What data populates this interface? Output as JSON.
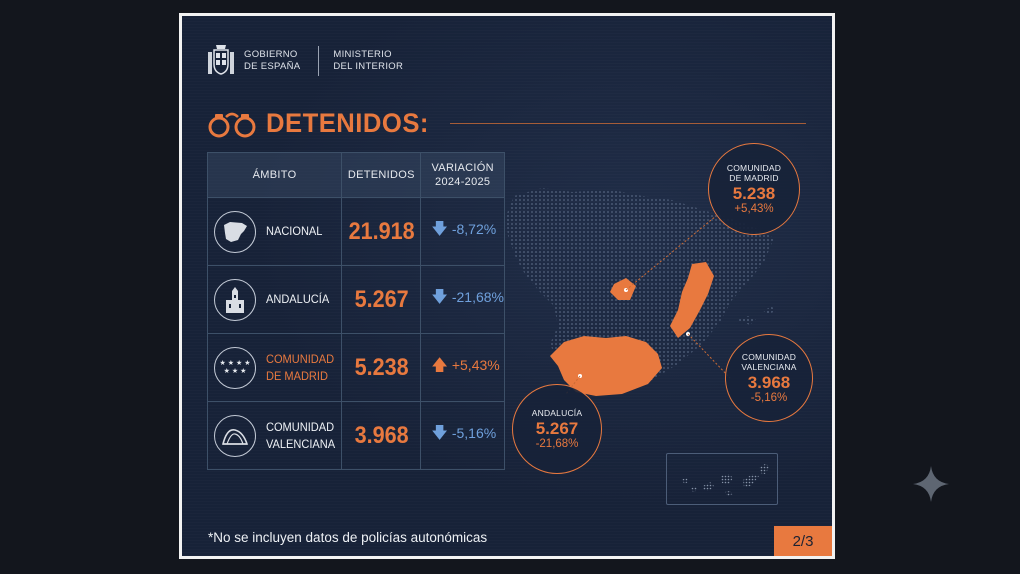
{
  "header": {
    "org_line1": "GOBIERNO",
    "org_line2": "DE ESPAÑA",
    "ministry_line1": "MINISTERIO",
    "ministry_line2": "DEL INTERIOR"
  },
  "title": "DETENIDOS:",
  "table": {
    "headers": {
      "ambito": "ÁMBITO",
      "detenidos": "DETENIDOS",
      "variacion_line1": "VARIACIÓN",
      "variacion_line2": "2024-2025"
    },
    "rows": [
      {
        "label_line1": "NACIONAL",
        "label_line2": "",
        "detenidos": "21.918",
        "variacion": "-8,72%",
        "icon": "spain-map-icon"
      },
      {
        "label_line1": "ANDALUCÍA",
        "label_line2": "",
        "detenidos": "5.267",
        "variacion": "-21,68%",
        "icon": "andalucia-building-icon"
      },
      {
        "label_line1": "COMUNIDAD",
        "label_line2": "DE MADRID",
        "detenidos": "5.238",
        "variacion": "+5,43%",
        "icon": "madrid-stars-icon"
      },
      {
        "label_line1": "COMUNIDAD",
        "label_line2": "VALENCIANA",
        "detenidos": "3.968",
        "variacion": "-5,16%",
        "icon": "valencia-building-icon"
      }
    ]
  },
  "callouts": {
    "madrid": {
      "line1": "COMUNIDAD",
      "line2": "DE MADRID",
      "value": "5.238",
      "pct": "+5,43%"
    },
    "valenciana": {
      "line1": "COMUNIDAD",
      "line2": "VALENCIANA",
      "value": "3.968",
      "pct": "-5,16%"
    },
    "andalucia": {
      "line1": "ANDALUCÍA",
      "line2": "",
      "value": "5.267",
      "pct": "-21,68%"
    }
  },
  "footnote": "*No se incluyen datos de policías autonómicas",
  "page_indicator": "2/3",
  "colors": {
    "accent": "#e8793f",
    "background": "#172238",
    "decrease": "#6fa0dc"
  }
}
